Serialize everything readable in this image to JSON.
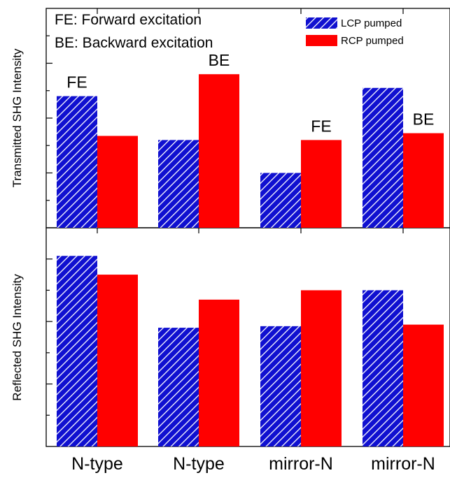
{
  "chart_data": [
    {
      "type": "bar",
      "panel": "top",
      "ylabel": "Transmitted SHG Intensity",
      "categories": [
        "N-type",
        "N-type",
        "mirror-N",
        "mirror-N"
      ],
      "series": [
        {
          "name": "LCP pumped",
          "color": "#1010d0",
          "pattern": "diagonal-hatch",
          "values": [
            4.8,
            3.2,
            2.0,
            5.1
          ]
        },
        {
          "name": "RCP pumped",
          "color": "#ff0000",
          "pattern": "solid",
          "values": [
            3.35,
            5.6,
            3.2,
            3.45
          ]
        }
      ],
      "ylim": [
        0,
        8
      ],
      "bar_labels": [
        "FE",
        "BE",
        "FE",
        "BE"
      ],
      "bar_label_series": [
        0,
        1,
        1,
        1
      ],
      "notes": [
        "FE: Forward excitation",
        "BE: Backward excitation"
      ],
      "legend_position": "top-right"
    },
    {
      "type": "bar",
      "panel": "bottom",
      "ylabel": "Reflected SHG Intensity",
      "categories": [
        "N-type",
        "N-type",
        "mirror-N",
        "mirror-N"
      ],
      "series": [
        {
          "name": "LCP pumped",
          "color": "#1010d0",
          "pattern": "diagonal-hatch",
          "values": [
            6.1,
            3.8,
            3.85,
            5.0
          ]
        },
        {
          "name": "RCP pumped",
          "color": "#ff0000",
          "pattern": "solid",
          "values": [
            5.5,
            4.7,
            5.0,
            3.9
          ]
        }
      ],
      "ylim": [
        0,
        7
      ]
    }
  ]
}
